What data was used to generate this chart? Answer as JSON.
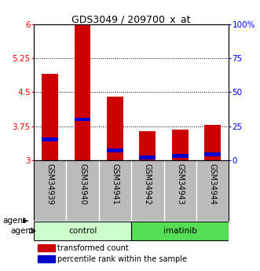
{
  "title": "GDS3049 / 209700_x_at",
  "samples": [
    "GSM34939",
    "GSM34940",
    "GSM34941",
    "GSM34942",
    "GSM34943",
    "GSM34944"
  ],
  "groups": [
    "control",
    "control",
    "control",
    "imatinib",
    "imatinib",
    "imatinib"
  ],
  "transformed_count": [
    4.9,
    6.0,
    4.4,
    3.63,
    3.67,
    3.78
  ],
  "percentile_rank": [
    15,
    30,
    7,
    2,
    3,
    4
  ],
  "ylim": [
    3.0,
    6.0
  ],
  "yticks": [
    3,
    3.75,
    4.5,
    5.25,
    6
  ],
  "ytick_labels": [
    "3",
    "3.75",
    "4.5",
    "5.25",
    "6"
  ],
  "right_yticks": [
    0,
    25,
    50,
    75,
    100
  ],
  "right_ytick_labels": [
    "0",
    "25",
    "50",
    "75",
    "100%"
  ],
  "bar_color": "#cc0000",
  "percentile_color": "#0000cc",
  "bar_width": 0.5,
  "control_color": "#ccffcc",
  "imatinib_color": "#55dd55",
  "background_color": "#ffffff",
  "sample_bg_color": "#bbbbbb"
}
